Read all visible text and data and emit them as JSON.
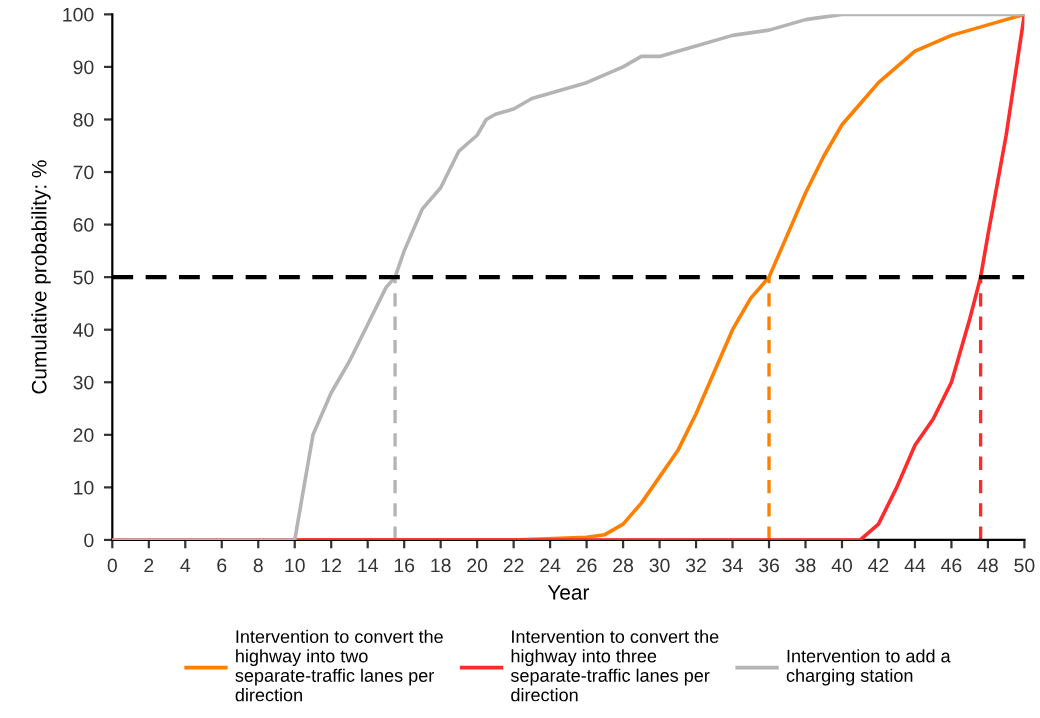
{
  "chart_data": {
    "type": "line",
    "xlabel": "Year",
    "ylabel": "Cumulative probability: %",
    "xlim": [
      0,
      50
    ],
    "ylim": [
      0,
      100
    ],
    "xticks": [
      0,
      2,
      4,
      6,
      8,
      10,
      12,
      14,
      16,
      18,
      20,
      22,
      24,
      26,
      28,
      30,
      32,
      34,
      36,
      38,
      40,
      42,
      44,
      46,
      48,
      50
    ],
    "yticks": [
      0,
      10,
      20,
      30,
      40,
      50,
      60,
      70,
      80,
      90,
      100
    ],
    "grid": false,
    "legend": "bottom",
    "marker": "none",
    "line_style": "solid",
    "series": [
      {
        "name": "Intervention to convert the highway into two separate-traffic lanes per direction",
        "color": "#ff7f00",
        "x": [
          0,
          22,
          26,
          27,
          28,
          29,
          30,
          31,
          32,
          33,
          34,
          35,
          36,
          37,
          38,
          39,
          40,
          41,
          42,
          43,
          44,
          46,
          48,
          50
        ],
        "values": [
          0,
          0,
          0.5,
          1,
          3,
          7,
          12,
          17,
          24,
          32,
          40,
          46,
          50,
          58,
          66,
          73,
          79,
          83,
          87,
          90,
          93,
          96,
          98,
          100
        ]
      },
      {
        "name": "Intervention to convert the highway into three separate-traffic lanes per direction",
        "color": "#ff2a2a",
        "x": [
          0,
          41,
          42,
          43,
          44,
          45,
          46,
          47,
          47.6,
          48,
          49,
          50
        ],
        "values": [
          0,
          0,
          3,
          10,
          18,
          23,
          30,
          42,
          50,
          58,
          77,
          100
        ]
      },
      {
        "name": "Intervention to add a charging station",
        "color": "#b4b4b4",
        "x": [
          0,
          10,
          10.5,
          11,
          12,
          13,
          14,
          15,
          15.5,
          16,
          17,
          18,
          19,
          20,
          20.5,
          21,
          22,
          23,
          24,
          26,
          28,
          29,
          30,
          32,
          34,
          36,
          38,
          40,
          50
        ],
        "values": [
          0,
          0,
          10,
          20,
          28,
          34,
          41,
          48,
          50,
          55,
          63,
          67,
          74,
          77,
          80,
          81,
          82,
          84,
          85,
          87,
          90,
          92,
          92,
          94,
          96,
          97,
          99,
          100,
          100
        ]
      }
    ],
    "ref_lines": [
      {
        "axis": "y",
        "value": 50,
        "color": "#000000",
        "line_style": "dashed"
      },
      {
        "axis": "x",
        "value": 15.5,
        "color": "#b4b4b4",
        "line_style": "dashed"
      },
      {
        "axis": "x",
        "value": 36,
        "color": "#ff7f00",
        "line_style": "dashed"
      },
      {
        "axis": "x",
        "value": 47.6,
        "color": "#ff2a2a",
        "line_style": "dashed"
      }
    ]
  }
}
